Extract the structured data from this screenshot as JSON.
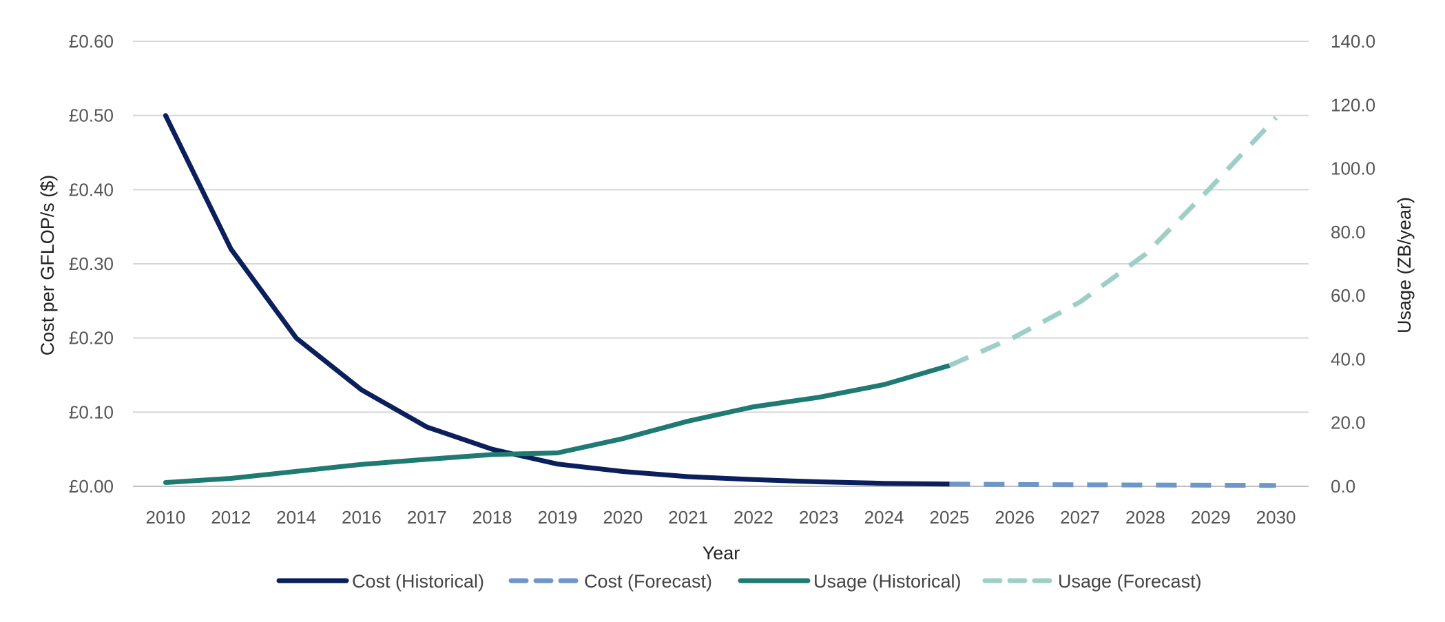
{
  "chart_data": {
    "type": "line",
    "title": "",
    "xlabel": "Year",
    "ylabel_left": "Cost per GFLOP/s ($)",
    "ylabel_right": "Usage (ZB/year)",
    "categories": [
      "2010",
      "2012",
      "2014",
      "2016",
      "2017",
      "2018",
      "2019",
      "2020",
      "2021",
      "2022",
      "2023",
      "2024",
      "2025",
      "2026",
      "2027",
      "2028",
      "2029",
      "2030"
    ],
    "y_left": {
      "min": 0,
      "max": 0.6,
      "ticks": [
        "£0.00",
        "£0.10",
        "£0.20",
        "£0.30",
        "£0.40",
        "£0.50",
        "£0.60"
      ]
    },
    "y_right": {
      "min": 0,
      "max": 140,
      "ticks": [
        "0.0",
        "20.0",
        "40.0",
        "60.0",
        "80.0",
        "100.0",
        "120.0",
        "140.0"
      ]
    },
    "grid": true,
    "legend_position": "bottom",
    "series": [
      {
        "name": "Cost (Historical)",
        "axis": "left",
        "style": "solid",
        "color": "#0b1f5c",
        "values": [
          0.5,
          0.32,
          0.2,
          0.13,
          0.08,
          0.05,
          0.03,
          0.02,
          0.013,
          0.009,
          0.006,
          0.004,
          0.003,
          null,
          null,
          null,
          null,
          null
        ]
      },
      {
        "name": "Cost (Forecast)",
        "axis": "left",
        "style": "dashed",
        "color": "#6f96c9",
        "values": [
          null,
          null,
          null,
          null,
          null,
          null,
          null,
          null,
          null,
          null,
          null,
          null,
          0.003,
          0.0025,
          0.002,
          0.0018,
          0.0015,
          0.0012
        ]
      },
      {
        "name": "Usage (Historical)",
        "axis": "right",
        "style": "solid",
        "color": "#1f7a72",
        "values": [
          1.2,
          2.5,
          4.7,
          6.9,
          8.5,
          10.0,
          10.5,
          15.0,
          20.5,
          25.0,
          28.0,
          32.0,
          38.0,
          null,
          null,
          null,
          null,
          null
        ]
      },
      {
        "name": "Usage (Forecast)",
        "axis": "right",
        "style": "dashed",
        "color": "#9dcfc6",
        "values": [
          null,
          null,
          null,
          null,
          null,
          null,
          null,
          null,
          null,
          null,
          null,
          null,
          38.0,
          47.0,
          58.0,
          73.0,
          94.0,
          116.0
        ]
      }
    ]
  }
}
